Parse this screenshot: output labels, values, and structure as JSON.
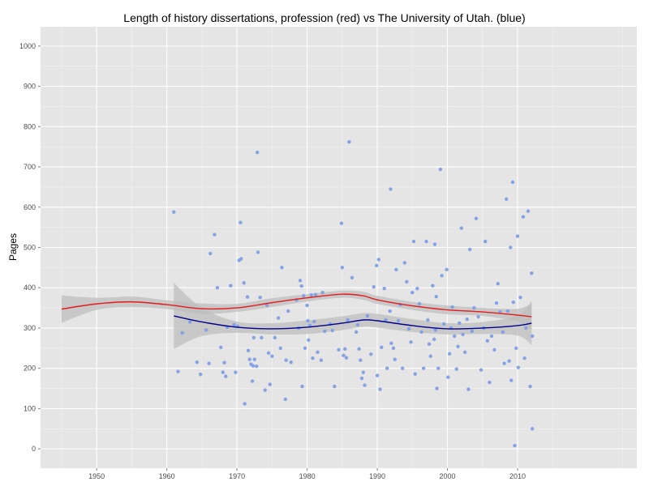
{
  "chart_data": {
    "type": "scatter",
    "title": "Length of history dissertations, profession (red) vs The University of Utah. (blue)",
    "xlabel": "",
    "ylabel": "Pages",
    "xlim": [
      1942,
      2027
    ],
    "ylim": [
      -48,
      1048
    ],
    "x_ticks": [
      1950,
      1960,
      1970,
      1980,
      1990,
      2000,
      2010
    ],
    "y_ticks": [
      0,
      100,
      200,
      300,
      400,
      500,
      600,
      700,
      800,
      900,
      1000
    ],
    "grid": true,
    "legend": "none",
    "colors": {
      "panel_bg": "#e5e5e5",
      "grid_major": "#ffffff",
      "grid_minor": "#f2f2f2",
      "points": "#7f9fe4",
      "profession": "#e41a1c",
      "utah": "#00008b",
      "ribbon": "#bdbdbd"
    },
    "series": [
      {
        "type": "line",
        "color": "#e41a1c",
        "x": [
          1945,
          1950,
          1955,
          1960,
          1965,
          1970,
          1975,
          1980,
          1985,
          1988,
          1990,
          1995,
          2000,
          2005,
          2010,
          2012
        ],
        "y": [
          347,
          360,
          365,
          358,
          348,
          350,
          363,
          375,
          384,
          380,
          370,
          355,
          345,
          340,
          332,
          328
        ],
        "ribbon_lower": [
          313,
          345,
          352,
          347,
          335,
          340,
          352,
          366,
          375,
          370,
          360,
          345,
          334,
          330,
          316,
          295
        ],
        "ribbon_upper": [
          381,
          375,
          378,
          369,
          361,
          360,
          374,
          384,
          393,
          390,
          380,
          365,
          356,
          350,
          348,
          361
        ]
      },
      {
        "type": "line",
        "color": "#00008b",
        "x": [
          1961,
          1965,
          1970,
          1975,
          1980,
          1985,
          1988,
          1990,
          1995,
          2000,
          2005,
          2010,
          2012
        ],
        "y": [
          330,
          315,
          302,
          298,
          302,
          312,
          320,
          318,
          306,
          298,
          300,
          306,
          312
        ],
        "ribbon_lower": [
          248,
          280,
          288,
          284,
          285,
          295,
          303,
          301,
          290,
          284,
          285,
          281,
          258
        ],
        "ribbon_upper": [
          412,
          350,
          316,
          312,
          319,
          329,
          337,
          335,
          322,
          312,
          315,
          331,
          366
        ]
      },
      {
        "type": "scatter",
        "color": "#7f9fe4",
        "points": [
          [
            1961,
            588
          ],
          [
            1961.6,
            192
          ],
          [
            1962.2,
            288
          ],
          [
            1963.3,
            315
          ],
          [
            1964.3,
            215
          ],
          [
            1964.8,
            185
          ],
          [
            1965.6,
            295
          ],
          [
            1966.0,
            212
          ],
          [
            1966.2,
            485
          ],
          [
            1966.8,
            532
          ],
          [
            1967.2,
            400
          ],
          [
            1967.7,
            252
          ],
          [
            1968.0,
            190
          ],
          [
            1968.2,
            214
          ],
          [
            1968.4,
            180
          ],
          [
            1968.6,
            302
          ],
          [
            1969.1,
            405
          ],
          [
            1969.6,
            308
          ],
          [
            1969.8,
            190
          ],
          [
            1970.1,
            304
          ],
          [
            1970.3,
            468
          ],
          [
            1970.5,
            562
          ],
          [
            1970.6,
            472
          ],
          [
            1971.0,
            412
          ],
          [
            1971.1,
            112
          ],
          [
            1971.5,
            377
          ],
          [
            1971.6,
            244
          ],
          [
            1971.8,
            222
          ],
          [
            1972.0,
            210
          ],
          [
            1972.2,
            168
          ],
          [
            1972.3,
            206
          ],
          [
            1972.4,
            276
          ],
          [
            1972.5,
            222
          ],
          [
            1972.8,
            205
          ],
          [
            1972.9,
            736
          ],
          [
            1973.0,
            488
          ],
          [
            1973.3,
            376
          ],
          [
            1973.5,
            276
          ],
          [
            1974.0,
            146
          ],
          [
            1974.3,
            356
          ],
          [
            1974.5,
            238
          ],
          [
            1974.7,
            160
          ],
          [
            1975.0,
            230
          ],
          [
            1975.4,
            276
          ],
          [
            1975.9,
            325
          ],
          [
            1976.2,
            250
          ],
          [
            1976.4,
            450
          ],
          [
            1976.9,
            123
          ],
          [
            1977.0,
            220
          ],
          [
            1977.3,
            342
          ],
          [
            1977.7,
            215
          ],
          [
            1978.5,
            370
          ],
          [
            1978.8,
            300
          ],
          [
            1979.0,
            418
          ],
          [
            1979.2,
            404
          ],
          [
            1979.3,
            155
          ],
          [
            1979.5,
            380
          ],
          [
            1979.7,
            250
          ],
          [
            1980.0,
            356
          ],
          [
            1980.1,
            318
          ],
          [
            1980.2,
            270
          ],
          [
            1980.4,
            306
          ],
          [
            1980.6,
            382
          ],
          [
            1980.8,
            225
          ],
          [
            1981.0,
            316
          ],
          [
            1981.2,
            383
          ],
          [
            1981.5,
            240
          ],
          [
            1982.0,
            220
          ],
          [
            1982.2,
            388
          ],
          [
            1982.5,
            292
          ],
          [
            1983.3,
            310
          ],
          [
            1983.6,
            294
          ],
          [
            1983.9,
            155
          ],
          [
            1984.5,
            246
          ],
          [
            1984.9,
            560
          ],
          [
            1985.0,
            450
          ],
          [
            1985.2,
            232
          ],
          [
            1985.4,
            248
          ],
          [
            1985.6,
            226
          ],
          [
            1985.8,
            320
          ],
          [
            1986.0,
            762
          ],
          [
            1986.4,
            425
          ],
          [
            1987.0,
            290
          ],
          [
            1987.2,
            308
          ],
          [
            1987.4,
            248
          ],
          [
            1987.6,
            220
          ],
          [
            1987.8,
            175
          ],
          [
            1988.0,
            190
          ],
          [
            1988.2,
            158
          ],
          [
            1988.6,
            330
          ],
          [
            1989.1,
            235
          ],
          [
            1989.5,
            402
          ],
          [
            1989.9,
            455
          ],
          [
            1990.0,
            182
          ],
          [
            1990.2,
            470
          ],
          [
            1990.4,
            148
          ],
          [
            1990.6,
            252
          ],
          [
            1991.0,
            398
          ],
          [
            1991.2,
            320
          ],
          [
            1991.4,
            200
          ],
          [
            1991.8,
            342
          ],
          [
            1991.9,
            645
          ],
          [
            1992.0,
            262
          ],
          [
            1992.3,
            250
          ],
          [
            1992.5,
            222
          ],
          [
            1992.7,
            445
          ],
          [
            1993.0,
            318
          ],
          [
            1993.3,
            358
          ],
          [
            1993.6,
            200
          ],
          [
            1993.9,
            462
          ],
          [
            1994.2,
            415
          ],
          [
            1994.5,
            298
          ],
          [
            1994.8,
            265
          ],
          [
            1995.0,
            388
          ],
          [
            1995.2,
            515
          ],
          [
            1995.4,
            186
          ],
          [
            1995.7,
            398
          ],
          [
            1996.0,
            360
          ],
          [
            1996.3,
            290
          ],
          [
            1996.6,
            200
          ],
          [
            1997.0,
            515
          ],
          [
            1997.2,
            320
          ],
          [
            1997.4,
            260
          ],
          [
            1997.6,
            230
          ],
          [
            1997.9,
            405
          ],
          [
            1998.1,
            272
          ],
          [
            1998.2,
            508
          ],
          [
            1998.3,
            295
          ],
          [
            1998.4,
            378
          ],
          [
            1998.5,
            150
          ],
          [
            1998.7,
            200
          ],
          [
            1999.0,
            694
          ],
          [
            1999.2,
            430
          ],
          [
            1999.5,
            310
          ],
          [
            1999.9,
            445
          ],
          [
            2000.1,
            178
          ],
          [
            2000.3,
            236
          ],
          [
            2000.5,
            300
          ],
          [
            2000.7,
            352
          ],
          [
            2001.0,
            280
          ],
          [
            2001.3,
            198
          ],
          [
            2001.5,
            254
          ],
          [
            2001.7,
            312
          ],
          [
            2002.0,
            548
          ],
          [
            2002.2,
            284
          ],
          [
            2002.5,
            240
          ],
          [
            2002.8,
            322
          ],
          [
            2003.0,
            148
          ],
          [
            2003.2,
            495
          ],
          [
            2003.5,
            292
          ],
          [
            2003.8,
            350
          ],
          [
            2004.1,
            572
          ],
          [
            2004.4,
            328
          ],
          [
            2004.8,
            196
          ],
          [
            2005.2,
            300
          ],
          [
            2005.4,
            515
          ],
          [
            2005.7,
            268
          ],
          [
            2006.0,
            165
          ],
          [
            2006.3,
            280
          ],
          [
            2006.7,
            246
          ],
          [
            2007.0,
            362
          ],
          [
            2007.2,
            410
          ],
          [
            2007.5,
            340
          ],
          [
            2007.9,
            290
          ],
          [
            2008.1,
            212
          ],
          [
            2008.4,
            620
          ],
          [
            2008.6,
            342
          ],
          [
            2008.8,
            218
          ],
          [
            2009.0,
            500
          ],
          [
            2009.1,
            170
          ],
          [
            2009.3,
            662
          ],
          [
            2009.4,
            364
          ],
          [
            2009.6,
            8
          ],
          [
            2009.8,
            250
          ],
          [
            2010.0,
            528
          ],
          [
            2010.1,
            202
          ],
          [
            2010.4,
            376
          ],
          [
            2010.8,
            576
          ],
          [
            2011.0,
            225
          ],
          [
            2011.2,
            300
          ],
          [
            2011.5,
            590
          ],
          [
            2011.8,
            155
          ],
          [
            2012.0,
            436
          ],
          [
            2012.1,
            50
          ],
          [
            2012.1,
            280
          ]
        ]
      }
    ]
  }
}
